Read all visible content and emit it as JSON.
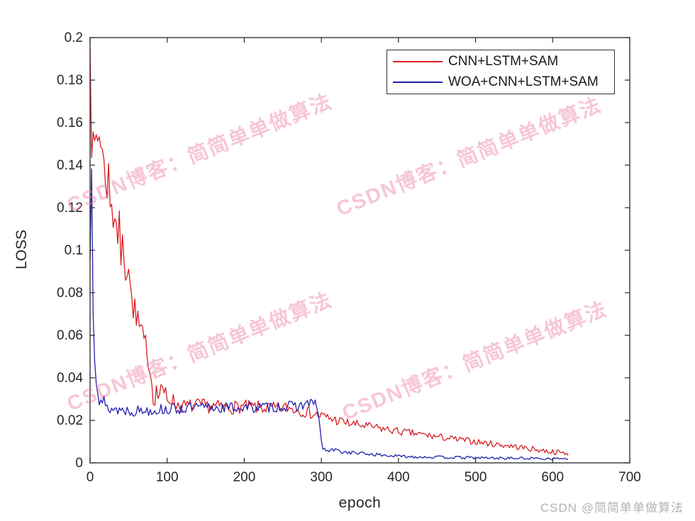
{
  "watermarks": {
    "tiled_text": "CSDN博客：简简单单做算法",
    "tiled_color": "rgba(236,118,162,0.42)",
    "footer_text": "CSDN @简简单单做算法",
    "footer_color": "#b3b3b3"
  },
  "axis_color": "#262626",
  "chart_data": {
    "type": "line",
    "title": "",
    "xlabel": "epoch",
    "ylabel": "LOSS",
    "xlim": [
      0,
      700
    ],
    "ylim": [
      0,
      0.2
    ],
    "grid": false,
    "legend_position": "top-right",
    "xticks": {
      "values": [
        0,
        100,
        200,
        300,
        400,
        500,
        600,
        700
      ],
      "labels": [
        "0",
        "100",
        "200",
        "300",
        "400",
        "500",
        "600",
        "700"
      ]
    },
    "yticks": {
      "values": [
        0,
        0.02,
        0.04,
        0.06,
        0.08,
        0.1,
        0.12,
        0.14,
        0.16,
        0.18,
        0.2
      ],
      "labels": [
        "0",
        "0.02",
        "0.04",
        "0.06",
        "0.08",
        "0.1",
        "0.12",
        "0.14",
        "0.16",
        "0.18",
        "0.2"
      ]
    },
    "x_step": 2,
    "x_end": 620,
    "series": [
      {
        "name": "CNN+LSTM+SAM",
        "color": "#da1f23",
        "seed": 7,
        "keypoints": [
          [
            0,
            0.199
          ],
          [
            2,
            0.15
          ],
          [
            3,
            0.172
          ],
          [
            4,
            0.147
          ],
          [
            5,
            0.169
          ],
          [
            6,
            0.148
          ],
          [
            7,
            0.162
          ],
          [
            9,
            0.146
          ],
          [
            11,
            0.16
          ],
          [
            13,
            0.148
          ],
          [
            15,
            0.158
          ],
          [
            17,
            0.135
          ],
          [
            19,
            0.142
          ],
          [
            21,
            0.128
          ],
          [
            24,
            0.136
          ],
          [
            26,
            0.12
          ],
          [
            28,
            0.127
          ],
          [
            30,
            0.113
          ],
          [
            33,
            0.121
          ],
          [
            35,
            0.104
          ],
          [
            38,
            0.111
          ],
          [
            40,
            0.097
          ],
          [
            43,
            0.104
          ],
          [
            46,
            0.091
          ],
          [
            50,
            0.094
          ],
          [
            53,
            0.079
          ],
          [
            55,
            0.071
          ],
          [
            57,
            0.076
          ],
          [
            60,
            0.064
          ],
          [
            62,
            0.07
          ],
          [
            65,
            0.058
          ],
          [
            68,
            0.063
          ],
          [
            70,
            0.054
          ],
          [
            73,
            0.058
          ],
          [
            76,
            0.047
          ],
          [
            79,
            0.041
          ],
          [
            81,
            0.035
          ],
          [
            83,
            0.029
          ],
          [
            86,
            0.034
          ],
          [
            89,
            0.03
          ],
          [
            92,
            0.037
          ],
          [
            95,
            0.03
          ],
          [
            98,
            0.034
          ],
          [
            101,
            0.029
          ],
          [
            105,
            0.031
          ],
          [
            110,
            0.028
          ],
          [
            120,
            0.0265
          ],
          [
            140,
            0.027
          ],
          [
            160,
            0.0265
          ],
          [
            180,
            0.026
          ],
          [
            200,
            0.0265
          ],
          [
            220,
            0.026
          ],
          [
            240,
            0.0255
          ],
          [
            255,
            0.026
          ],
          [
            270,
            0.025
          ],
          [
            285,
            0.0235
          ],
          [
            300,
            0.022
          ],
          [
            315,
            0.0205
          ],
          [
            330,
            0.019
          ],
          [
            345,
            0.018
          ],
          [
            360,
            0.0172
          ],
          [
            380,
            0.016
          ],
          [
            400,
            0.0148
          ],
          [
            420,
            0.0138
          ],
          [
            440,
            0.0128
          ],
          [
            460,
            0.0118
          ],
          [
            480,
            0.0108
          ],
          [
            500,
            0.01
          ],
          [
            520,
            0.009
          ],
          [
            540,
            0.0082
          ],
          [
            560,
            0.0072
          ],
          [
            580,
            0.0062
          ],
          [
            600,
            0.0052
          ],
          [
            610,
            0.0048
          ],
          [
            620,
            0.0045
          ]
        ],
        "noise": [
          [
            0,
            0.004
          ],
          [
            3,
            0.009
          ],
          [
            25,
            0.009
          ],
          [
            60,
            0.006
          ],
          [
            90,
            0.004
          ],
          [
            110,
            0.0035
          ],
          [
            300,
            0.0028
          ],
          [
            360,
            0.002
          ],
          [
            500,
            0.0015
          ],
          [
            620,
            0.0012
          ]
        ]
      },
      {
        "name": "WOA+CNN+LSTM+SAM",
        "color": "#2121ae",
        "seed": 13,
        "keypoints": [
          [
            0,
            0.095
          ],
          [
            1,
            0.118
          ],
          [
            2,
            0.14
          ],
          [
            3,
            0.112
          ],
          [
            4,
            0.075
          ],
          [
            5,
            0.06
          ],
          [
            6,
            0.052
          ],
          [
            7,
            0.046
          ],
          [
            8,
            0.041
          ],
          [
            10,
            0.036
          ],
          [
            12,
            0.03
          ],
          [
            13,
            0.034
          ],
          [
            15,
            0.027
          ],
          [
            18,
            0.0295
          ],
          [
            20,
            0.026
          ],
          [
            25,
            0.0255
          ],
          [
            40,
            0.025
          ],
          [
            60,
            0.0245
          ],
          [
            80,
            0.025
          ],
          [
            100,
            0.0252
          ],
          [
            130,
            0.0258
          ],
          [
            160,
            0.026
          ],
          [
            200,
            0.026
          ],
          [
            230,
            0.0262
          ],
          [
            260,
            0.0265
          ],
          [
            275,
            0.027
          ],
          [
            285,
            0.0285
          ],
          [
            292,
            0.0275
          ],
          [
            296,
            0.024
          ],
          [
            298,
            0.017
          ],
          [
            300,
            0.01
          ],
          [
            302,
            0.0068
          ],
          [
            305,
            0.006
          ],
          [
            310,
            0.0056
          ],
          [
            318,
            0.0062
          ],
          [
            325,
            0.0052
          ],
          [
            340,
            0.0048
          ],
          [
            360,
            0.0042
          ],
          [
            380,
            0.0036
          ],
          [
            400,
            0.0031
          ],
          [
            430,
            0.0028
          ],
          [
            460,
            0.0026
          ],
          [
            500,
            0.0024
          ],
          [
            540,
            0.0022
          ],
          [
            580,
            0.0021
          ],
          [
            620,
            0.002
          ]
        ],
        "noise": [
          [
            0,
            0.001
          ],
          [
            2,
            0.006
          ],
          [
            8,
            0.004
          ],
          [
            15,
            0.0028
          ],
          [
            290,
            0.0025
          ],
          [
            298,
            0.001
          ],
          [
            305,
            0.0009
          ],
          [
            400,
            0.0007
          ],
          [
            620,
            0.0006
          ]
        ]
      }
    ]
  }
}
